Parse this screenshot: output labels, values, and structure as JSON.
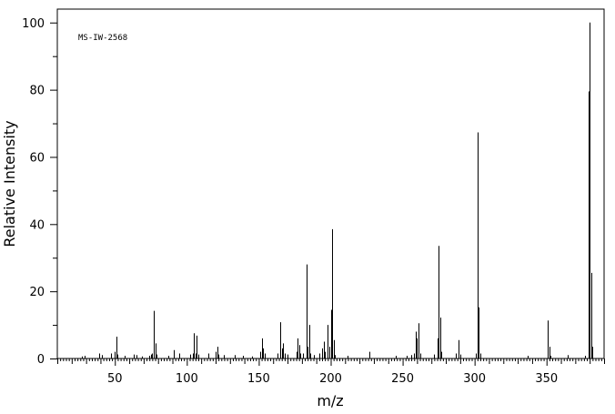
{
  "chart_data": {
    "type": "bar",
    "title": "",
    "annotation": "MS-IW-2568",
    "xlabel": "m/z",
    "ylabel": "Relative Intensity",
    "xlim": [
      10,
      390
    ],
    "ylim": [
      0,
      104
    ],
    "x_ticks": [
      50,
      100,
      150,
      200,
      250,
      300,
      350
    ],
    "y_ticks": [
      0,
      20,
      40,
      60,
      80,
      100
    ],
    "grid": false,
    "legend": "none",
    "peaks": [
      {
        "x": 27,
        "y": 0.6
      },
      {
        "x": 29,
        "y": 0.8
      },
      {
        "x": 39,
        "y": 1.5
      },
      {
        "x": 41,
        "y": 1.0
      },
      {
        "x": 47,
        "y": 1.5
      },
      {
        "x": 50,
        "y": 2.0
      },
      {
        "x": 51,
        "y": 6.5
      },
      {
        "x": 52,
        "y": 1.2
      },
      {
        "x": 57,
        "y": 0.8
      },
      {
        "x": 63,
        "y": 1.2
      },
      {
        "x": 65,
        "y": 1.0
      },
      {
        "x": 69,
        "y": 0.6
      },
      {
        "x": 74,
        "y": 0.8
      },
      {
        "x": 75,
        "y": 1.2
      },
      {
        "x": 76,
        "y": 1.5
      },
      {
        "x": 77,
        "y": 14.2
      },
      {
        "x": 78,
        "y": 4.5
      },
      {
        "x": 79,
        "y": 1.2
      },
      {
        "x": 87,
        "y": 0.8
      },
      {
        "x": 91,
        "y": 2.5
      },
      {
        "x": 95,
        "y": 1.5
      },
      {
        "x": 102,
        "y": 1.2
      },
      {
        "x": 104,
        "y": 1.5
      },
      {
        "x": 105,
        "y": 7.5
      },
      {
        "x": 106,
        "y": 1.5
      },
      {
        "x": 107,
        "y": 6.8
      },
      {
        "x": 108,
        "y": 1.2
      },
      {
        "x": 115,
        "y": 1.5
      },
      {
        "x": 120,
        "y": 2.0
      },
      {
        "x": 121,
        "y": 3.5
      },
      {
        "x": 122,
        "y": 1.2
      },
      {
        "x": 126,
        "y": 1.0
      },
      {
        "x": 133,
        "y": 1.0
      },
      {
        "x": 139,
        "y": 0.8
      },
      {
        "x": 145,
        "y": 0.6
      },
      {
        "x": 151,
        "y": 2.0
      },
      {
        "x": 152,
        "y": 6.0
      },
      {
        "x": 153,
        "y": 3.0
      },
      {
        "x": 154,
        "y": 1.5
      },
      {
        "x": 163,
        "y": 1.5
      },
      {
        "x": 165,
        "y": 10.8
      },
      {
        "x": 166,
        "y": 3.0
      },
      {
        "x": 167,
        "y": 4.5
      },
      {
        "x": 168,
        "y": 1.5
      },
      {
        "x": 170,
        "y": 1.2
      },
      {
        "x": 176,
        "y": 2.0
      },
      {
        "x": 177,
        "y": 6.0
      },
      {
        "x": 178,
        "y": 4.0
      },
      {
        "x": 179,
        "y": 1.5
      },
      {
        "x": 181,
        "y": 1.5
      },
      {
        "x": 183,
        "y": 28.0
      },
      {
        "x": 184,
        "y": 3.5
      },
      {
        "x": 185,
        "y": 10.0
      },
      {
        "x": 186,
        "y": 1.5
      },
      {
        "x": 188,
        "y": 1.0
      },
      {
        "x": 192,
        "y": 1.5
      },
      {
        "x": 194,
        "y": 3.0
      },
      {
        "x": 195,
        "y": 5.0
      },
      {
        "x": 196,
        "y": 2.0
      },
      {
        "x": 198,
        "y": 10.0
      },
      {
        "x": 199,
        "y": 3.5
      },
      {
        "x": 200,
        "y": 14.5
      },
      {
        "x": 201,
        "y": 38.5
      },
      {
        "x": 202,
        "y": 5.5
      },
      {
        "x": 203,
        "y": 1.0
      },
      {
        "x": 212,
        "y": 0.8
      },
      {
        "x": 227,
        "y": 2.0
      },
      {
        "x": 245,
        "y": 0.8
      },
      {
        "x": 253,
        "y": 0.8
      },
      {
        "x": 256,
        "y": 1.0
      },
      {
        "x": 258,
        "y": 1.5
      },
      {
        "x": 259,
        "y": 8.0
      },
      {
        "x": 260,
        "y": 6.0
      },
      {
        "x": 261,
        "y": 10.5
      },
      {
        "x": 262,
        "y": 1.5
      },
      {
        "x": 272,
        "y": 1.2
      },
      {
        "x": 274,
        "y": 6.0
      },
      {
        "x": 275,
        "y": 33.5
      },
      {
        "x": 276,
        "y": 12.2
      },
      {
        "x": 277,
        "y": 2.0
      },
      {
        "x": 287,
        "y": 1.5
      },
      {
        "x": 289,
        "y": 5.5
      },
      {
        "x": 290,
        "y": 1.2
      },
      {
        "x": 301,
        "y": 1.5
      },
      {
        "x": 302,
        "y": 67.3
      },
      {
        "x": 303,
        "y": 15.2
      },
      {
        "x": 304,
        "y": 1.5
      },
      {
        "x": 337,
        "y": 0.8
      },
      {
        "x": 351,
        "y": 11.3
      },
      {
        "x": 352,
        "y": 3.5
      },
      {
        "x": 353,
        "y": 0.8
      },
      {
        "x": 365,
        "y": 1.0
      },
      {
        "x": 377,
        "y": 0.8
      },
      {
        "x": 379,
        "y": 79.5
      },
      {
        "x": 380,
        "y": 100.0
      },
      {
        "x": 381,
        "y": 25.5
      },
      {
        "x": 382,
        "y": 3.5
      }
    ]
  }
}
